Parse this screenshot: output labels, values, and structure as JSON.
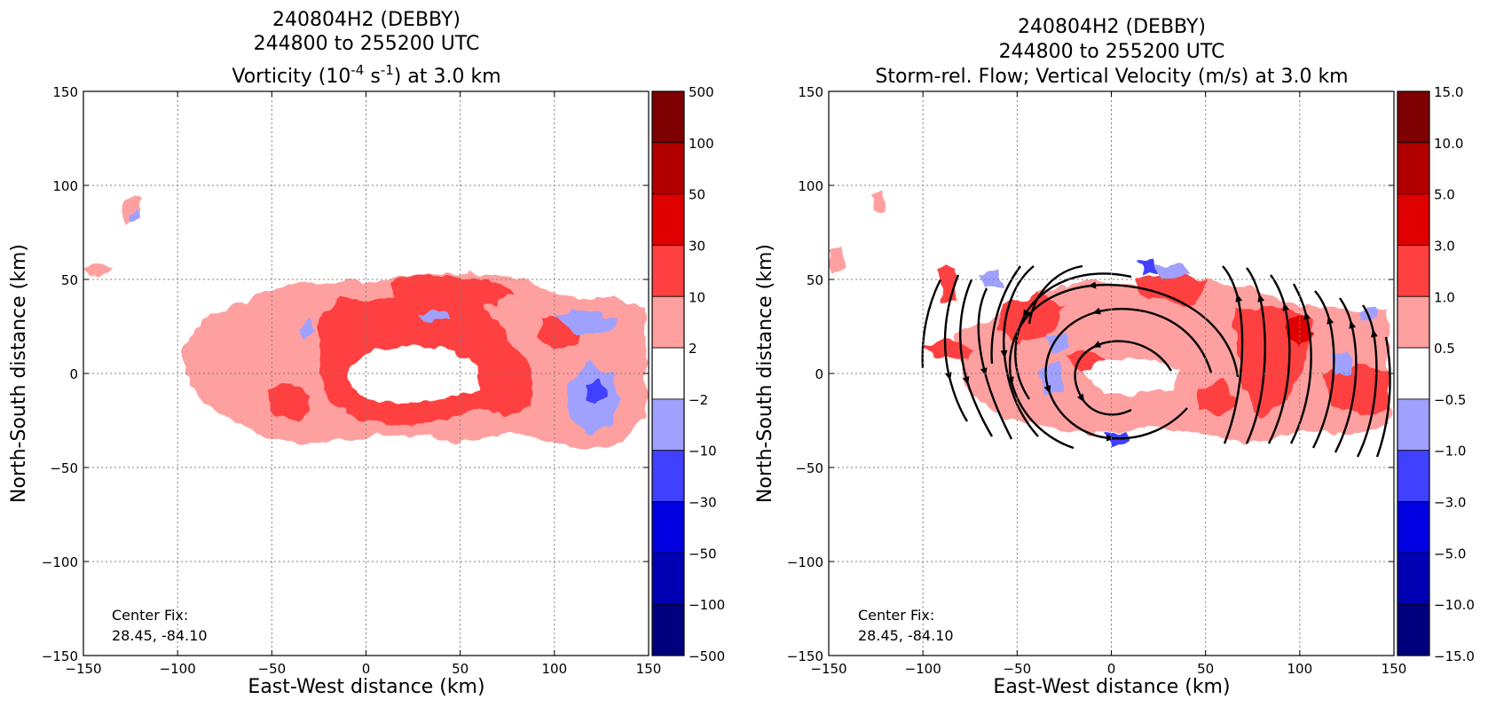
{
  "chart_data": [
    {
      "type": "heatmap",
      "title_lines": [
        "240804H2 (DEBBY)",
        "244800 to 255200 UTC"
      ],
      "title_line3": {
        "prefix": "Vorticity (10",
        "sup1": "-4",
        "mid": " s",
        "sup2": "-1",
        "suffix": ") at 3.0 km"
      },
      "xlabel": "East-West distance (km)",
      "ylabel": "North-South distance (km)",
      "xlim": [
        -150,
        150
      ],
      "ylim": [
        -150,
        150
      ],
      "xticks": [
        "−150",
        "−100",
        "−50",
        "0",
        "50",
        "100",
        "150"
      ],
      "yticks": [
        "−150",
        "−100",
        "−50",
        "0",
        "50",
        "100",
        "150"
      ],
      "grid": true,
      "annotation": [
        "Center Fix:",
        "28.45, -84.10"
      ],
      "colorbar": {
        "labels": [
          "500",
          "100",
          "50",
          "30",
          "10",
          "2",
          "−2",
          "−10",
          "−30",
          "−50",
          "−100",
          "−500"
        ],
        "colors": [
          "#7f0000",
          "#b20000",
          "#e00000",
          "#ff4040",
          "#ffa0a0",
          "#ffffff",
          "#a0a0ff",
          "#4040ff",
          "#0000e0",
          "#0000b2",
          "#00007f"
        ]
      },
      "regions": [
        {
          "level": "light-red",
          "x": [
            -100,
            150
          ],
          "y": [
            -40,
            55
          ]
        },
        {
          "level": "red",
          "x": [
            -20,
            100
          ],
          "y": [
            -40,
            50
          ]
        },
        {
          "level": "blue",
          "x": [
            90,
            150
          ],
          "y": [
            -40,
            30
          ]
        },
        {
          "level": "light-red",
          "x": [
            -125,
            -105
          ],
          "y": [
            75,
            95
          ]
        },
        {
          "level": "empty",
          "x": [
            -5,
            55
          ],
          "y": [
            -15,
            10
          ]
        }
      ]
    },
    {
      "type": "heatmap",
      "title_lines": [
        "240804H2 (DEBBY)",
        "244800 to 255200 UTC",
        "Storm-rel. Flow; Vertical Velocity (m/s) at 3.0 km"
      ],
      "xlabel": "East-West distance (km)",
      "ylabel": "North-South distance (km)",
      "xlim": [
        -150,
        150
      ],
      "ylim": [
        -150,
        150
      ],
      "xticks": [
        "−150",
        "−100",
        "−50",
        "0",
        "50",
        "100",
        "150"
      ],
      "yticks": [
        "−150",
        "−100",
        "−50",
        "0",
        "50",
        "100",
        "150"
      ],
      "grid": true,
      "annotation": [
        "Center Fix:",
        "28.45, -84.10"
      ],
      "colorbar": {
        "labels": [
          "15.0",
          "10.0",
          "5.0",
          "3.0",
          "1.0",
          "0.5",
          "−0.5",
          "−1.0",
          "−3.0",
          "−5.0",
          "−10.0",
          "−15.0"
        ],
        "colors": [
          "#7f0000",
          "#b20000",
          "#e00000",
          "#ff4040",
          "#ffa0a0",
          "#ffffff",
          "#a0a0ff",
          "#4040ff",
          "#0000e0",
          "#0000b2",
          "#00007f"
        ]
      },
      "regions": [
        {
          "level": "red",
          "x": [
            -110,
            150
          ],
          "y": [
            -40,
            55
          ]
        },
        {
          "level": "blue",
          "x": [
            -60,
            150
          ],
          "y": [
            -40,
            60
          ]
        },
        {
          "level": "light-red",
          "x": [
            -150,
            -140
          ],
          "y": [
            45,
            65
          ]
        }
      ],
      "streamlines": "cyclonic circulation centred near (10, 0) km"
    }
  ]
}
